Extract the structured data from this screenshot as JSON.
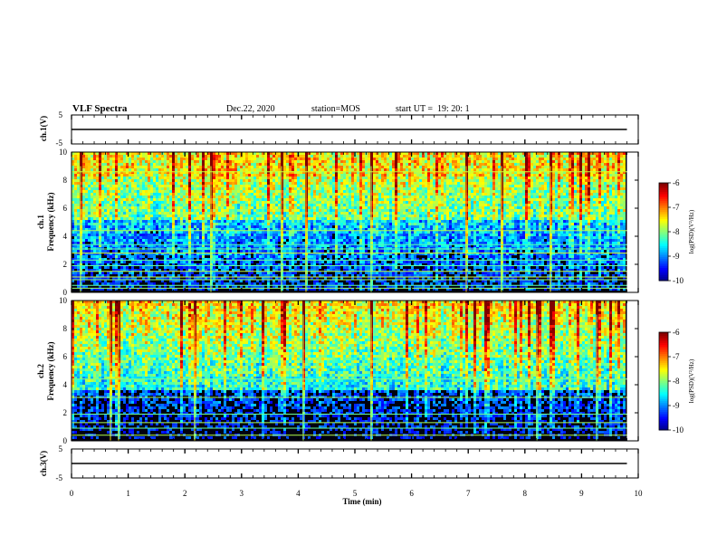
{
  "header": {
    "title": "VLF Spectra",
    "date": "Dec.22, 2020",
    "station": "station=MOS",
    "start_ut": "start UT =  19: 20: 1"
  },
  "chart_data": [
    {
      "type": "line",
      "name": "ch1-waveform",
      "ylabel": "ch.1(V)",
      "ylim": [
        -5,
        5
      ],
      "yticks": [
        "5",
        "-5"
      ],
      "xlim": [
        0,
        10
      ],
      "x": [
        0,
        9.8
      ],
      "values": [
        0,
        0
      ]
    },
    {
      "type": "heatmap",
      "name": "ch1-spectrogram",
      "ylabel_line1": "ch.1",
      "ylabel_line2": "Frequency (kHz)",
      "ylim": [
        0,
        10
      ],
      "yticks": [
        "0",
        "2",
        "4",
        "6",
        "8",
        "10"
      ],
      "xlim": [
        0,
        10
      ],
      "data_extent_x": [
        0,
        9.8
      ],
      "colorbar": {
        "label": "log(PSD)(V²/Hz)",
        "range": [
          -10,
          -6
        ],
        "ticks": [
          "-6",
          "-7",
          "-8",
          "-9",
          "-10"
        ]
      },
      "line_frequencies_khz": [
        0.3,
        0.5,
        0.9,
        1.1,
        1.5,
        1.9,
        2.3,
        2.8,
        3.1,
        3.4,
        4.4,
        8.6
      ]
    },
    {
      "type": "heatmap",
      "name": "ch2-spectrogram",
      "ylabel_line1": "ch.2",
      "ylabel_line2": "Frequency (kHz)",
      "ylim": [
        0,
        10
      ],
      "yticks": [
        "0",
        "2",
        "4",
        "6",
        "8",
        "10"
      ],
      "xlim": [
        0,
        10
      ],
      "data_extent_x": [
        0,
        9.8
      ],
      "colorbar": {
        "label": "log(PSD)(V²/Hz)",
        "range": [
          -10,
          -6
        ],
        "ticks": [
          "-6",
          "-7",
          "-8",
          "-9",
          "-10"
        ]
      },
      "line_frequencies_khz": [
        0.4,
        0.9,
        1.3,
        1.9,
        3.1,
        4.4
      ]
    },
    {
      "type": "line",
      "name": "ch3-waveform",
      "ylabel": "ch.3(V)",
      "ylim": [
        -5,
        5
      ],
      "yticks": [
        "5",
        "-5"
      ],
      "xlim": [
        0,
        10
      ],
      "x": [
        0,
        9.8
      ],
      "values": [
        0,
        0
      ]
    }
  ],
  "xaxis": {
    "label": "Time (min)",
    "ticks": [
      "0",
      "1",
      "2",
      "3",
      "4",
      "5",
      "6",
      "7",
      "8",
      "9",
      "10"
    ]
  }
}
